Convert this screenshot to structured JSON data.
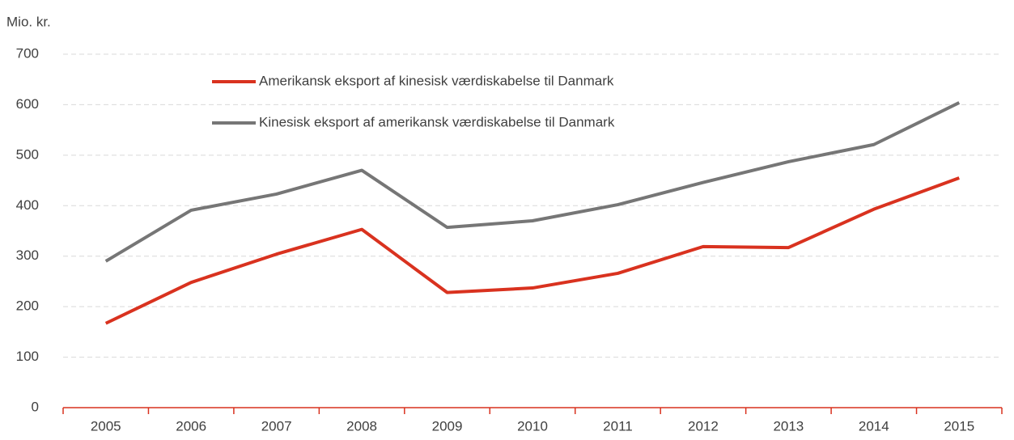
{
  "chart_data": {
    "type": "line",
    "y_axis_label": "Mio. kr.",
    "categories": [
      "2005",
      "2006",
      "2007",
      "2008",
      "2009",
      "2010",
      "2011",
      "2012",
      "2013",
      "2014",
      "2015"
    ],
    "series": [
      {
        "name": "Amerikansk eksport af kinesisk værdiskabelse til Danmark",
        "color": "#d9321f",
        "values": [
          167,
          248,
          304,
          353,
          228,
          237,
          266,
          319,
          317,
          393,
          455
        ]
      },
      {
        "name": "Kinesisk eksport af amerikansk værdiskabelse til Danmark",
        "color": "#767676",
        "values": [
          290,
          391,
          423,
          470,
          357,
          370,
          402,
          446,
          487,
          521,
          604
        ]
      }
    ],
    "ylim": [
      0,
      700
    ],
    "yticks": [
      0,
      100,
      200,
      300,
      400,
      500,
      600,
      700
    ],
    "grid": true,
    "legend": "upper-left",
    "axis_color": "#d9321f"
  }
}
